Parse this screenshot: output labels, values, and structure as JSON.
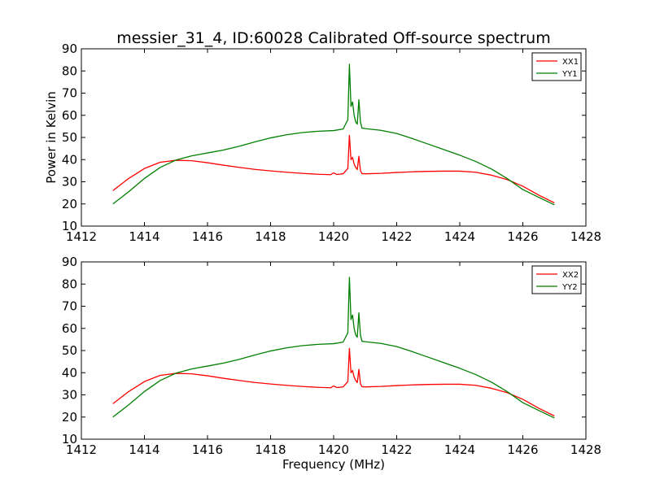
{
  "figure": {
    "title": "messier_31_4, ID:60028 Calibrated Off-source spectrum",
    "ylabel": "Power in Kelvin",
    "xlabel": "Frequency (MHz)"
  },
  "colors": {
    "xx": "#ff0000",
    "yy": "#007f00",
    "frame": "#000000",
    "background": "#ffffff"
  },
  "chart_data": [
    {
      "type": "line",
      "title": "messier_31_4, ID:60028 Calibrated Off-source spectrum",
      "xlabel": "",
      "ylabel": "Power in Kelvin",
      "xlim": [
        1412,
        1428
      ],
      "ylim": [
        10,
        90
      ],
      "xticks": [
        "1412",
        "1414",
        "1416",
        "1418",
        "1420",
        "1422",
        "1424",
        "1426",
        "1428"
      ],
      "yticks": [
        "10",
        "20",
        "30",
        "40",
        "50",
        "60",
        "70",
        "80",
        "90"
      ],
      "grid": false,
      "legend_position": "top-right",
      "series": [
        {
          "name": "XX1",
          "color": "#ff0000",
          "x": [
            1413.0,
            1413.5,
            1414.0,
            1414.5,
            1415.0,
            1415.5,
            1416.0,
            1416.5,
            1417.0,
            1417.5,
            1418.0,
            1418.5,
            1419.0,
            1419.5,
            1419.9,
            1420.0,
            1420.1,
            1420.3,
            1420.45,
            1420.5,
            1420.55,
            1420.6,
            1420.65,
            1420.7,
            1420.75,
            1420.8,
            1420.85,
            1420.9,
            1421.0,
            1421.5,
            1422.0,
            1422.5,
            1423.0,
            1423.5,
            1424.0,
            1424.5,
            1425.0,
            1425.5,
            1426.0,
            1426.5,
            1427.0
          ],
          "y": [
            26.0,
            31.5,
            36.0,
            38.8,
            39.7,
            39.5,
            38.6,
            37.5,
            36.5,
            35.6,
            34.9,
            34.3,
            33.8,
            33.4,
            33.2,
            34.0,
            33.3,
            33.6,
            36.0,
            51.0,
            40.0,
            41.0,
            38.0,
            36.5,
            35.5,
            41.5,
            35.0,
            33.7,
            33.6,
            33.8,
            34.2,
            34.5,
            34.7,
            34.8,
            34.8,
            34.3,
            33.0,
            31.0,
            28.0,
            24.0,
            20.5
          ]
        },
        {
          "name": "YY1",
          "color": "#007f00",
          "x": [
            1413.0,
            1413.5,
            1414.0,
            1414.5,
            1415.0,
            1415.5,
            1416.0,
            1416.5,
            1417.0,
            1417.5,
            1418.0,
            1418.5,
            1419.0,
            1419.5,
            1420.0,
            1420.3,
            1420.45,
            1420.5,
            1420.55,
            1420.6,
            1420.65,
            1420.7,
            1420.75,
            1420.8,
            1420.85,
            1420.9,
            1421.0,
            1421.5,
            1422.0,
            1422.5,
            1423.0,
            1423.5,
            1424.0,
            1424.5,
            1425.0,
            1425.5,
            1426.0,
            1426.5,
            1427.0
          ],
          "y": [
            20.0,
            25.5,
            31.5,
            36.5,
            39.8,
            41.7,
            43.0,
            44.3,
            46.0,
            48.0,
            49.8,
            51.2,
            52.2,
            52.8,
            53.1,
            53.8,
            58.0,
            83.0,
            64.0,
            66.0,
            60.0,
            57.0,
            56.0,
            67.0,
            57.0,
            54.2,
            54.0,
            53.2,
            51.8,
            49.5,
            47.0,
            44.5,
            42.0,
            39.2,
            35.8,
            31.5,
            26.5,
            23.0,
            19.6
          ]
        }
      ]
    },
    {
      "type": "line",
      "title": "",
      "xlabel": "Frequency (MHz)",
      "ylabel": "",
      "xlim": [
        1412,
        1428
      ],
      "ylim": [
        10,
        90
      ],
      "xticks": [
        "1412",
        "1414",
        "1416",
        "1418",
        "1420",
        "1422",
        "1424",
        "1426",
        "1428"
      ],
      "yticks": [
        "10",
        "20",
        "30",
        "40",
        "50",
        "60",
        "70",
        "80",
        "90"
      ],
      "grid": false,
      "legend_position": "top-right",
      "series": [
        {
          "name": "XX2",
          "color": "#ff0000",
          "x": [
            1413.0,
            1413.5,
            1414.0,
            1414.5,
            1415.0,
            1415.5,
            1416.0,
            1416.5,
            1417.0,
            1417.5,
            1418.0,
            1418.5,
            1419.0,
            1419.5,
            1419.9,
            1420.0,
            1420.1,
            1420.3,
            1420.45,
            1420.5,
            1420.55,
            1420.6,
            1420.65,
            1420.7,
            1420.75,
            1420.8,
            1420.85,
            1420.9,
            1421.0,
            1421.5,
            1422.0,
            1422.5,
            1423.0,
            1423.5,
            1424.0,
            1424.5,
            1425.0,
            1425.5,
            1426.0,
            1426.5,
            1427.0
          ],
          "y": [
            26.0,
            31.5,
            36.0,
            38.8,
            39.7,
            39.5,
            38.6,
            37.5,
            36.5,
            35.6,
            34.9,
            34.3,
            33.8,
            33.4,
            33.2,
            34.0,
            33.3,
            33.6,
            36.0,
            51.0,
            40.0,
            41.0,
            38.0,
            36.5,
            35.5,
            41.5,
            35.0,
            33.7,
            33.6,
            33.8,
            34.2,
            34.5,
            34.7,
            34.8,
            34.8,
            34.3,
            33.0,
            31.0,
            28.0,
            24.0,
            20.5
          ]
        },
        {
          "name": "YY2",
          "color": "#007f00",
          "x": [
            1413.0,
            1413.5,
            1414.0,
            1414.5,
            1415.0,
            1415.5,
            1416.0,
            1416.5,
            1417.0,
            1417.5,
            1418.0,
            1418.5,
            1419.0,
            1419.5,
            1420.0,
            1420.3,
            1420.45,
            1420.5,
            1420.55,
            1420.6,
            1420.65,
            1420.7,
            1420.75,
            1420.8,
            1420.85,
            1420.9,
            1421.0,
            1421.5,
            1422.0,
            1422.5,
            1423.0,
            1423.5,
            1424.0,
            1424.5,
            1425.0,
            1425.5,
            1426.0,
            1426.5,
            1427.0
          ],
          "y": [
            20.0,
            25.5,
            31.5,
            36.5,
            39.8,
            41.7,
            43.0,
            44.3,
            46.0,
            48.0,
            49.8,
            51.2,
            52.2,
            52.8,
            53.1,
            53.8,
            58.0,
            83.0,
            64.0,
            66.0,
            60.0,
            57.0,
            56.0,
            67.0,
            57.0,
            54.2,
            54.0,
            53.2,
            51.8,
            49.5,
            47.0,
            44.5,
            42.0,
            39.2,
            35.8,
            31.5,
            26.5,
            23.0,
            19.6
          ]
        }
      ]
    }
  ]
}
